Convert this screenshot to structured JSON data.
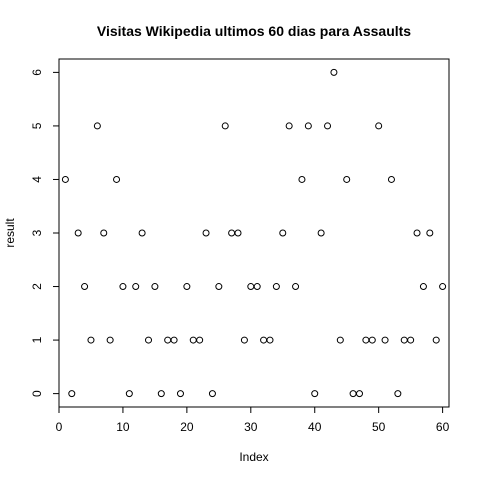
{
  "chart_data": {
    "type": "scatter",
    "title": "Visitas Wikipedia ultimos 60 dias para Assaults",
    "xlabel": "Index",
    "ylabel": "result",
    "xlim": [
      0,
      61
    ],
    "ylim": [
      -0.25,
      6.25
    ],
    "xticks": [
      0,
      10,
      20,
      30,
      40,
      50,
      60
    ],
    "yticks": [
      0,
      1,
      2,
      3,
      4,
      5,
      6
    ],
    "marker": "open-circle",
    "grid": false,
    "legend": "none",
    "x": [
      1,
      2,
      3,
      4,
      5,
      6,
      7,
      8,
      9,
      10,
      11,
      12,
      13,
      14,
      15,
      16,
      17,
      18,
      19,
      20,
      21,
      22,
      23,
      24,
      25,
      26,
      27,
      28,
      29,
      30,
      31,
      32,
      33,
      34,
      35,
      36,
      37,
      38,
      39,
      40,
      41,
      42,
      43,
      44,
      45,
      46,
      47,
      48,
      49,
      50,
      51,
      52,
      53,
      54,
      55,
      56,
      57,
      58,
      59,
      60
    ],
    "y": [
      4,
      0,
      3,
      2,
      1,
      5,
      3,
      1,
      4,
      2,
      0,
      2,
      3,
      1,
      2,
      0,
      1,
      1,
      0,
      2,
      1,
      1,
      3,
      0,
      2,
      5,
      3,
      3,
      1,
      2,
      2,
      1,
      1,
      2,
      3,
      5,
      2,
      4,
      5,
      0,
      3,
      5,
      6,
      1,
      4,
      0,
      0,
      1,
      1,
      5,
      1,
      4,
      0,
      1,
      1,
      3,
      2,
      3,
      1,
      2
    ]
  }
}
